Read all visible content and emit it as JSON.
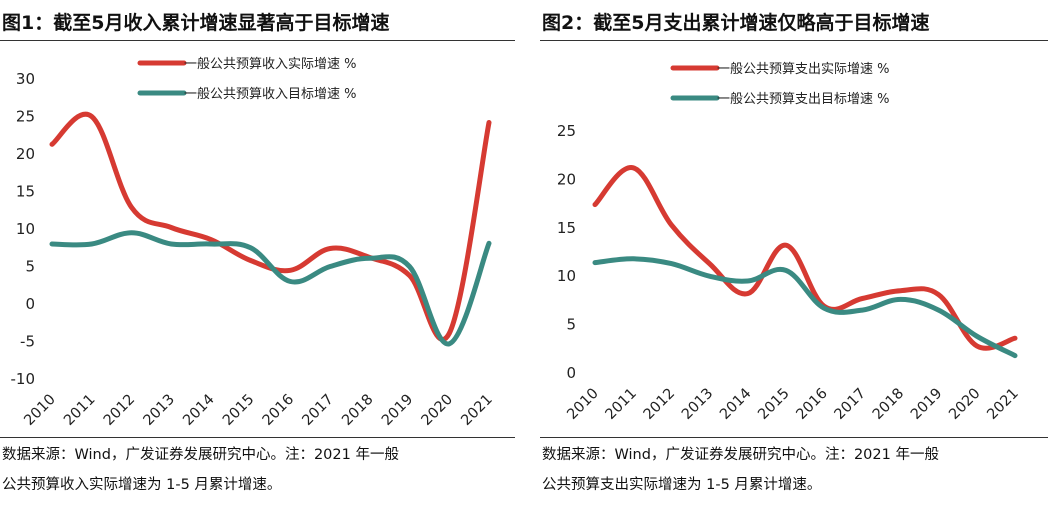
{
  "charts": [
    {
      "title": "图1：截至5月收入累计增速显著高于目标增速",
      "source_line1": "数据来源：Wind，广发证券发展研究中心。注：2021 年一般",
      "source_line2": "公共预算收入实际增速为 1-5 月累计增速。"
    },
    {
      "title": "图2：截至5月支出累计增速仅略高于目标增速",
      "source_line1": "数据来源：Wind，广发证券发展研究中心。注：2021 年一般",
      "source_line2": "公共预算支出实际增速为 1-5 月累计增速。"
    }
  ],
  "chart_data": [
    {
      "type": "line",
      "title": "截至5月收入累计增速显著高于目标增速",
      "categories": [
        "2010",
        "2011",
        "2012",
        "2013",
        "2014",
        "2015",
        "2016",
        "2017",
        "2018",
        "2019",
        "2020",
        "2021"
      ],
      "series": [
        {
          "name": "一般公共预算收入实际增速 %",
          "color": "#d63a32",
          "values": [
            21.3,
            25.0,
            12.9,
            10.2,
            8.6,
            5.8,
            4.5,
            7.4,
            6.2,
            3.8,
            -3.9,
            24.2
          ]
        },
        {
          "name": "一般公共预算收入目标增速 %",
          "color": "#3a8a82",
          "values": [
            8.0,
            8.0,
            9.5,
            8.0,
            8.0,
            7.5,
            3.0,
            5.0,
            6.1,
            5.0,
            -5.3,
            8.1
          ]
        }
      ],
      "yticks": [
        -10,
        -5,
        0,
        5,
        10,
        15,
        20,
        25,
        30
      ],
      "ylim": [
        -10,
        30
      ],
      "legend_position": "top-center",
      "grid": false
    },
    {
      "type": "line",
      "title": "截至5月支出累计增速仅略高于目标增速",
      "categories": [
        "2010",
        "2011",
        "2012",
        "2013",
        "2014",
        "2015",
        "2016",
        "2017",
        "2018",
        "2019",
        "2020",
        "2021"
      ],
      "series": [
        {
          "name": "一般公共预算支出实际增速 %",
          "color": "#d63a32",
          "values": [
            17.4,
            21.2,
            15.3,
            11.3,
            8.2,
            13.2,
            6.9,
            7.7,
            8.5,
            8.1,
            2.8,
            3.6
          ]
        },
        {
          "name": "一般公共预算支出目标增速 %",
          "color": "#3a8a82",
          "values": [
            11.4,
            11.8,
            11.3,
            10.0,
            9.5,
            10.6,
            6.7,
            6.5,
            7.6,
            6.5,
            3.8,
            1.8
          ]
        }
      ],
      "yticks": [
        0,
        5,
        10,
        15,
        20,
        25
      ],
      "ylim": [
        0,
        25
      ],
      "legend_position": "top-center",
      "grid": false
    }
  ]
}
